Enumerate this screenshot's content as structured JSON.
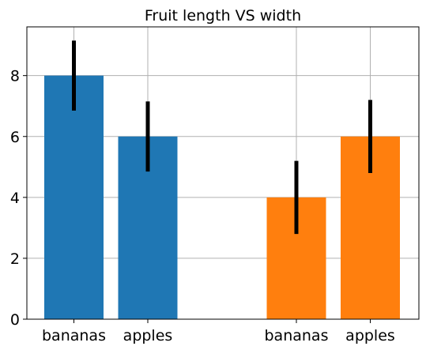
{
  "chart_data": {
    "type": "bar",
    "title": "Fruit length VS width",
    "xlabel": "",
    "ylabel": "",
    "ylim": [
      0,
      9.6
    ],
    "yticks": [
      0,
      2,
      4,
      6,
      8
    ],
    "grid": true,
    "legend": "none",
    "colors": [
      "#1f77b4",
      "#ff7f0e"
    ],
    "error_color": "#000000",
    "series": [
      {
        "categories": [
          "bananas",
          "apples"
        ],
        "values": [
          8,
          6
        ],
        "errors": [
          1.15,
          1.15
        ]
      },
      {
        "categories": [
          "bananas",
          "apples"
        ],
        "values": [
          4,
          6
        ],
        "errors": [
          1.2,
          1.2
        ]
      }
    ]
  }
}
